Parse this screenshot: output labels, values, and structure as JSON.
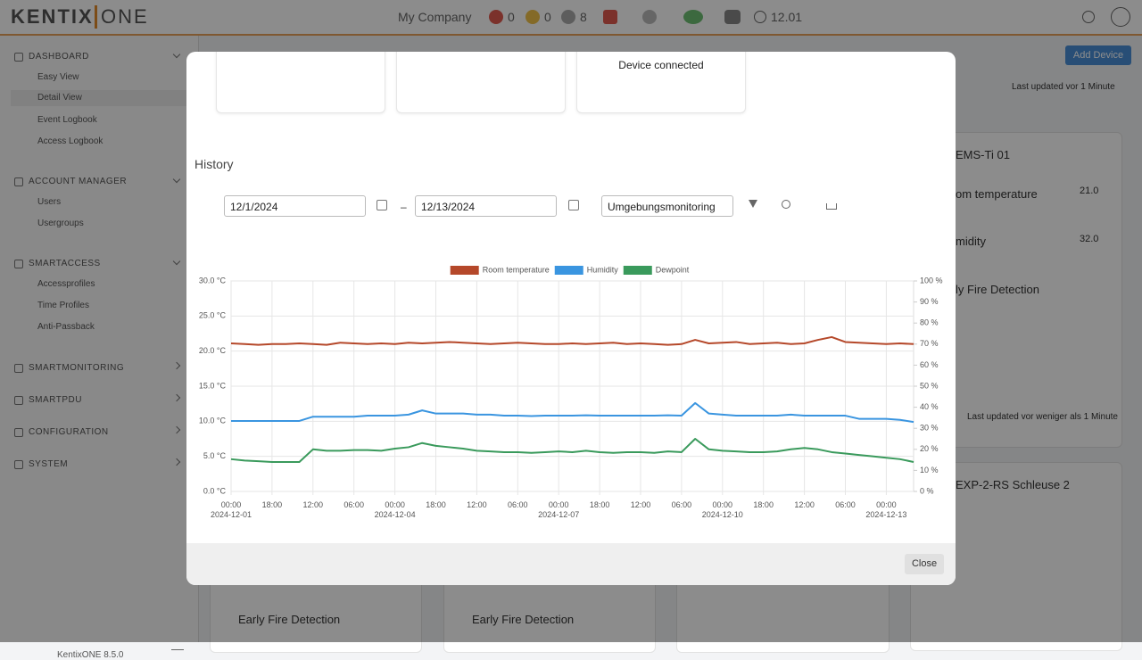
{
  "header": {
    "logo": "KENTIX",
    "logo_suffix": "ONE",
    "company": "My Company",
    "alarms": "0",
    "warnings": "0",
    "info": "8",
    "time": "12.01"
  },
  "sidebar": {
    "sections": [
      {
        "title": "DASHBOARD",
        "items": [
          "Easy View",
          "Detail View",
          "Event Logbook",
          "Access Logbook"
        ]
      },
      {
        "title": "ACCOUNT MANAGER",
        "items": [
          "Users",
          "Usergroups"
        ]
      },
      {
        "title": "SMARTACCESS",
        "items": [
          "Accessprofiles",
          "Time Profiles",
          "Anti-Passback"
        ]
      },
      {
        "title": "SMARTMONITORING"
      },
      {
        "title": "SMARTPDU"
      },
      {
        "title": "CONFIGURATION"
      },
      {
        "title": "SYSTEM"
      }
    ],
    "version": "KentixONE 8.5.0"
  },
  "background": {
    "add_device": "Add Device",
    "updated_1": "Last updated vor 1 Minute",
    "device_1": "EMS-Ti 01",
    "sensor_1": "om temperature",
    "sensor_1_value": "21.0",
    "sensor_2": "midity",
    "sensor_2_value": "32.0",
    "sensor_3": "ly Fire Detection",
    "updated_2": "Last updated vor weniger als 1 Minute",
    "device_2": "EXP-2-RS Schleuse 2",
    "card_a": "Early Fire Detection",
    "card_b": "Early Fire Detection"
  },
  "modal": {
    "device_status": "Device connected",
    "history_title": "History",
    "date_from": "12/1/2024",
    "date_separator": "–",
    "date_to": "12/13/2024",
    "profile": "Umgebungsmonitoring",
    "close": "Close"
  },
  "chart_data": {
    "type": "line",
    "x": [
      "2024-12-01 00:00",
      "2024-12-01 06:00",
      "2024-12-01 12:00",
      "2024-12-01 18:00",
      "2024-12-02 00:00",
      "2024-12-02 06:00",
      "2024-12-02 12:00",
      "2024-12-02 18:00",
      "2024-12-03 00:00",
      "2024-12-03 06:00",
      "2024-12-03 12:00",
      "2024-12-03 18:00",
      "2024-12-04 00:00",
      "2024-12-04 06:00",
      "2024-12-04 12:00",
      "2024-12-04 18:00",
      "2024-12-05 00:00",
      "2024-12-05 06:00",
      "2024-12-05 12:00",
      "2024-12-05 18:00",
      "2024-12-06 00:00",
      "2024-12-06 06:00",
      "2024-12-06 12:00",
      "2024-12-06 18:00",
      "2024-12-07 00:00",
      "2024-12-07 06:00",
      "2024-12-07 12:00",
      "2024-12-07 18:00",
      "2024-12-08 00:00",
      "2024-12-08 06:00",
      "2024-12-08 12:00",
      "2024-12-08 18:00",
      "2024-12-09 00:00",
      "2024-12-09 06:00",
      "2024-12-09 12:00",
      "2024-12-09 18:00",
      "2024-12-10 00:00",
      "2024-12-10 06:00",
      "2024-12-10 12:00",
      "2024-12-10 18:00",
      "2024-12-11 00:00",
      "2024-12-11 06:00",
      "2024-12-11 12:00",
      "2024-12-11 18:00",
      "2024-12-12 00:00",
      "2024-12-12 06:00",
      "2024-12-12 12:00",
      "2024-12-12 18:00",
      "2024-12-13 00:00",
      "2024-12-13 06:00",
      "2024-12-13 12:00"
    ],
    "series": [
      {
        "name": "Room temperature",
        "color": "#b5482a",
        "axis": "y",
        "values": [
          21.1,
          21.0,
          20.9,
          21.0,
          21.0,
          21.1,
          21.0,
          20.9,
          21.2,
          21.1,
          21.0,
          21.1,
          21.0,
          21.2,
          21.1,
          21.2,
          21.3,
          21.2,
          21.1,
          21.0,
          21.1,
          21.2,
          21.1,
          21.0,
          21.0,
          21.1,
          21.0,
          21.1,
          21.2,
          21.0,
          21.1,
          21.0,
          20.9,
          21.0,
          21.6,
          21.1,
          21.2,
          21.3,
          21.0,
          21.1,
          21.2,
          21.0,
          21.1,
          21.6,
          22.0,
          21.3,
          21.2,
          21.1,
          21.0,
          21.1,
          21.0
        ]
      },
      {
        "name": "Humidity",
        "color": "#3a95e0",
        "axis": "y2",
        "values": [
          33.5,
          33.5,
          33.5,
          33.5,
          33.5,
          33.5,
          35.5,
          35.5,
          35.5,
          35.5,
          36.0,
          36.0,
          36.0,
          36.5,
          38.5,
          37.0,
          37.0,
          37.0,
          36.5,
          36.5,
          36.0,
          36.0,
          35.8,
          36.0,
          36.0,
          36.0,
          36.2,
          36.0,
          36.0,
          36.0,
          36.0,
          36.0,
          36.2,
          36.0,
          42.0,
          37.0,
          36.5,
          36.0,
          36.0,
          36.0,
          36.0,
          36.5,
          36.0,
          36.0,
          36.0,
          36.0,
          34.5,
          34.5,
          34.5,
          34.0,
          33.0
        ]
      },
      {
        "name": "Dewpoint",
        "color": "#3a9a5c",
        "axis": "y",
        "values": [
          4.6,
          4.4,
          4.3,
          4.2,
          4.2,
          4.2,
          6.0,
          5.8,
          5.8,
          5.9,
          5.9,
          5.8,
          6.1,
          6.3,
          6.9,
          6.5,
          6.3,
          6.1,
          5.8,
          5.7,
          5.6,
          5.6,
          5.5,
          5.6,
          5.7,
          5.6,
          5.8,
          5.6,
          5.5,
          5.6,
          5.6,
          5.5,
          5.7,
          5.6,
          7.5,
          6.0,
          5.8,
          5.7,
          5.6,
          5.6,
          5.7,
          6.0,
          6.2,
          6.0,
          5.6,
          5.4,
          5.2,
          5.0,
          4.8,
          4.6,
          4.2
        ]
      }
    ],
    "xlim": [
      "2024-12-01 00:00",
      "2024-12-13 12:00"
    ],
    "xticks": [
      {
        "value": "2024-12-01 00:00",
        "label": "00:00\n2024-12-01"
      },
      {
        "value": "2024-12-01 18:00",
        "label": "18:00"
      },
      {
        "value": "2024-12-02 12:00",
        "label": "12:00"
      },
      {
        "value": "2024-12-03 06:00",
        "label": "06:00"
      },
      {
        "value": "2024-12-04 00:00",
        "label": "00:00\n2024-12-04"
      },
      {
        "value": "2024-12-04 18:00",
        "label": "18:00"
      },
      {
        "value": "2024-12-05 12:00",
        "label": "12:00"
      },
      {
        "value": "2024-12-06 06:00",
        "label": "06:00"
      },
      {
        "value": "2024-12-07 00:00",
        "label": "00:00\n2024-12-07"
      },
      {
        "value": "2024-12-07 18:00",
        "label": "18:00"
      },
      {
        "value": "2024-12-08 12:00",
        "label": "12:00"
      },
      {
        "value": "2024-12-09 06:00",
        "label": "06:00"
      },
      {
        "value": "2024-12-10 00:00",
        "label": "00:00\n2024-12-10"
      },
      {
        "value": "2024-12-10 18:00",
        "label": "18:00"
      },
      {
        "value": "2024-12-11 12:00",
        "label": "12:00"
      },
      {
        "value": "2024-12-12 06:00",
        "label": "06:00"
      },
      {
        "value": "2024-12-13 00:00",
        "label": "00:00\n2024-12-13"
      }
    ],
    "ylim": [
      0,
      30
    ],
    "yticks": [
      {
        "value": 0,
        "label": "0.0 °C"
      },
      {
        "value": 5,
        "label": "5.0 °C"
      },
      {
        "value": 10,
        "label": "10.0 °C"
      },
      {
        "value": 15,
        "label": "15.0 °C"
      },
      {
        "value": 20,
        "label": "20.0 °C"
      },
      {
        "value": 25,
        "label": "25.0 °C"
      },
      {
        "value": 30,
        "label": "30.0 °C"
      }
    ],
    "y2lim": [
      0,
      100
    ],
    "y2ticks": [
      {
        "value": 0,
        "label": "0 %"
      },
      {
        "value": 10,
        "label": "10 %"
      },
      {
        "value": 20,
        "label": "20 %"
      },
      {
        "value": 30,
        "label": "30 %"
      },
      {
        "value": 40,
        "label": "40 %"
      },
      {
        "value": 50,
        "label": "50 %"
      },
      {
        "value": 60,
        "label": "60 %"
      },
      {
        "value": 70,
        "label": "70 %"
      },
      {
        "value": 80,
        "label": "80 %"
      },
      {
        "value": 90,
        "label": "90 %"
      },
      {
        "value": 100,
        "label": "100 %"
      }
    ],
    "grid": true,
    "legend": "top"
  }
}
